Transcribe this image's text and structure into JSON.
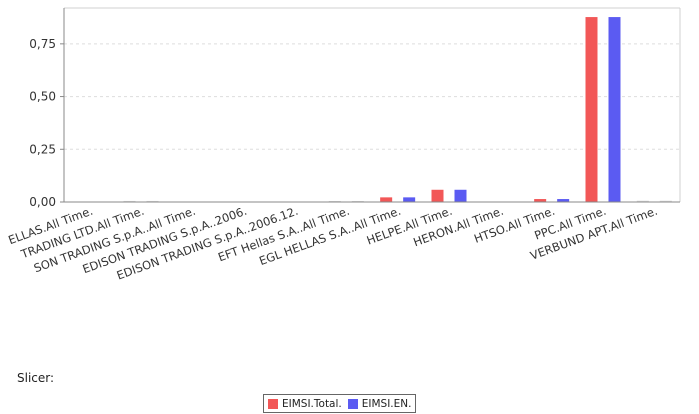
{
  "slicer_label": "Slicer:",
  "colors": {
    "EIMSI.Total.": "#f25757",
    "EIMSI.EN.": "#5b5bf2"
  },
  "chart_data": {
    "type": "bar",
    "ylim": [
      0,
      0.92
    ],
    "y_ticks": [
      "0,00",
      "0,25",
      "0,50",
      "0,75"
    ],
    "y_tick_values": [
      0,
      0.25,
      0.5,
      0.75
    ],
    "grid": true,
    "legend_position": "bottom",
    "categories": [
      "ELLAS.All Time.",
      "TRADING LTD.All Time.",
      "EDISON TRADING S.p.A..All Time.",
      "EDISON TRADING S.p.A..2006.",
      "EDISON TRADING S.p.A..2006.12.",
      "EFT Hellas S.A..All Time.",
      "EGL HELLAS S.A..All Time.",
      "HELPE.All Time.",
      "HERON.All Time.",
      "HTSO.All Time.",
      "PPC.All Time.",
      "VERBUND APT.All Time."
    ],
    "category_labels_shown": [
      "ELLAS.All Time.",
      "TRADING LTD.All Time.",
      "SON TRADING S.p.A..All Time.",
      "EDISON TRADING S.p.A..2006.",
      "EDISON TRADING S.p.A..2006.12.",
      "EFT Hellas S.A..All Time.",
      "EGL HELLAS S.A..All Time.",
      "HELPE.All Time.",
      "HERON.All Time.",
      "HTSO.All Time.",
      "PPC.All Time.",
      "VERBUND APT.All Time."
    ],
    "series": [
      {
        "name": "EIMSI.Total.",
        "values": [
          0.0,
          0.005,
          0.0,
          0.0,
          0.0,
          0.004,
          0.022,
          0.058,
          0.0,
          0.014,
          0.877,
          0.006
        ]
      },
      {
        "name": "EIMSI.EN.",
        "values": [
          0.0,
          0.005,
          0.0,
          0.0,
          0.0,
          0.004,
          0.022,
          0.058,
          0.0,
          0.014,
          0.877,
          0.006
        ]
      }
    ]
  }
}
